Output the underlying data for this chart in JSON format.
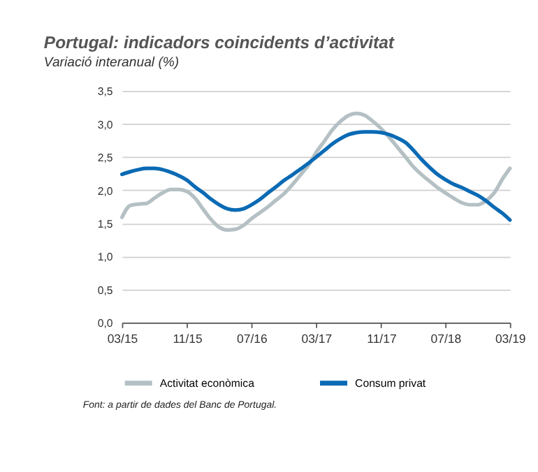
{
  "chart_data": {
    "type": "line",
    "title": "Portugal: indicadors coincidents d’activitat",
    "subtitle": "Variació interanual (%)",
    "x": [
      "2015-03",
      "2015-04",
      "2015-05",
      "2015-06",
      "2015-07",
      "2015-08",
      "2015-09",
      "2015-10",
      "2015-11",
      "2015-12",
      "2016-01",
      "2016-02",
      "2016-03",
      "2016-04",
      "2016-05",
      "2016-06",
      "2016-07",
      "2016-08",
      "2016-09",
      "2016-10",
      "2016-11",
      "2016-12",
      "2017-01",
      "2017-02",
      "2017-03",
      "2017-04",
      "2017-05",
      "2017-06",
      "2017-07",
      "2017-08",
      "2017-09",
      "2017-10",
      "2017-11",
      "2017-12",
      "2018-01",
      "2018-02",
      "2018-03",
      "2018-04",
      "2018-05",
      "2018-06",
      "2018-07",
      "2018-08",
      "2018-09",
      "2018-10",
      "2018-11",
      "2018-12",
      "2019-01",
      "2019-02",
      "2019-03"
    ],
    "series": [
      {
        "name": "Activitat econòmica",
        "color": "#b4c0c4",
        "values": [
          1.59,
          1.77,
          1.79,
          1.8,
          1.88,
          1.96,
          2.01,
          2.01,
          1.98,
          1.88,
          1.71,
          1.55,
          1.44,
          1.4,
          1.41,
          1.47,
          1.57,
          1.66,
          1.75,
          1.85,
          1.95,
          2.08,
          2.23,
          2.38,
          2.57,
          2.74,
          2.91,
          3.04,
          3.13,
          3.16,
          3.13,
          3.04,
          2.93,
          2.8,
          2.65,
          2.5,
          2.36,
          2.24,
          2.14,
          2.04,
          1.96,
          1.88,
          1.81,
          1.78,
          1.78,
          1.84,
          1.96,
          2.17,
          2.33
        ]
      },
      {
        "name": "Consum privat",
        "color": "#0a6ab4",
        "values": [
          2.24,
          2.28,
          2.31,
          2.33,
          2.33,
          2.31,
          2.27,
          2.22,
          2.15,
          2.05,
          1.96,
          1.86,
          1.78,
          1.72,
          1.7,
          1.72,
          1.78,
          1.86,
          1.96,
          2.05,
          2.15,
          2.23,
          2.32,
          2.41,
          2.5,
          2.6,
          2.7,
          2.78,
          2.84,
          2.87,
          2.88,
          2.88,
          2.87,
          2.84,
          2.79,
          2.72,
          2.61,
          2.47,
          2.35,
          2.24,
          2.16,
          2.09,
          2.04,
          1.98,
          1.92,
          1.84,
          1.74,
          1.65,
          1.55
        ]
      }
    ],
    "xlim": [
      "2015-03",
      "2019-03"
    ],
    "xticks": [
      {
        "value": "2015-03",
        "label": "03/15"
      },
      {
        "value": "2015-11",
        "label": "11/15"
      },
      {
        "value": "2016-07",
        "label": "07/16"
      },
      {
        "value": "2017-03",
        "label": "03/17"
      },
      {
        "value": "2017-11",
        "label": "11/17"
      },
      {
        "value": "2018-07",
        "label": "07/18"
      },
      {
        "value": "2019-03",
        "label": "03/19"
      }
    ],
    "ylim": [
      0,
      3.5
    ],
    "yticks": [
      {
        "value": 0,
        "label": "0,0"
      },
      {
        "value": 0.5,
        "label": "0,5"
      },
      {
        "value": 1,
        "label": "1,0"
      },
      {
        "value": 1.5,
        "label": "1,5"
      },
      {
        "value": 2,
        "label": "2,0"
      },
      {
        "value": 2.5,
        "label": "2,5"
      },
      {
        "value": 3,
        "label": "3,0"
      },
      {
        "value": 3.5,
        "label": "3,5"
      }
    ],
    "grid": "y",
    "legend": "bottom",
    "marker": "none",
    "line_style": "solid",
    "annotations": [
      "Font: a partir de dades del Banc de Portugal."
    ]
  }
}
